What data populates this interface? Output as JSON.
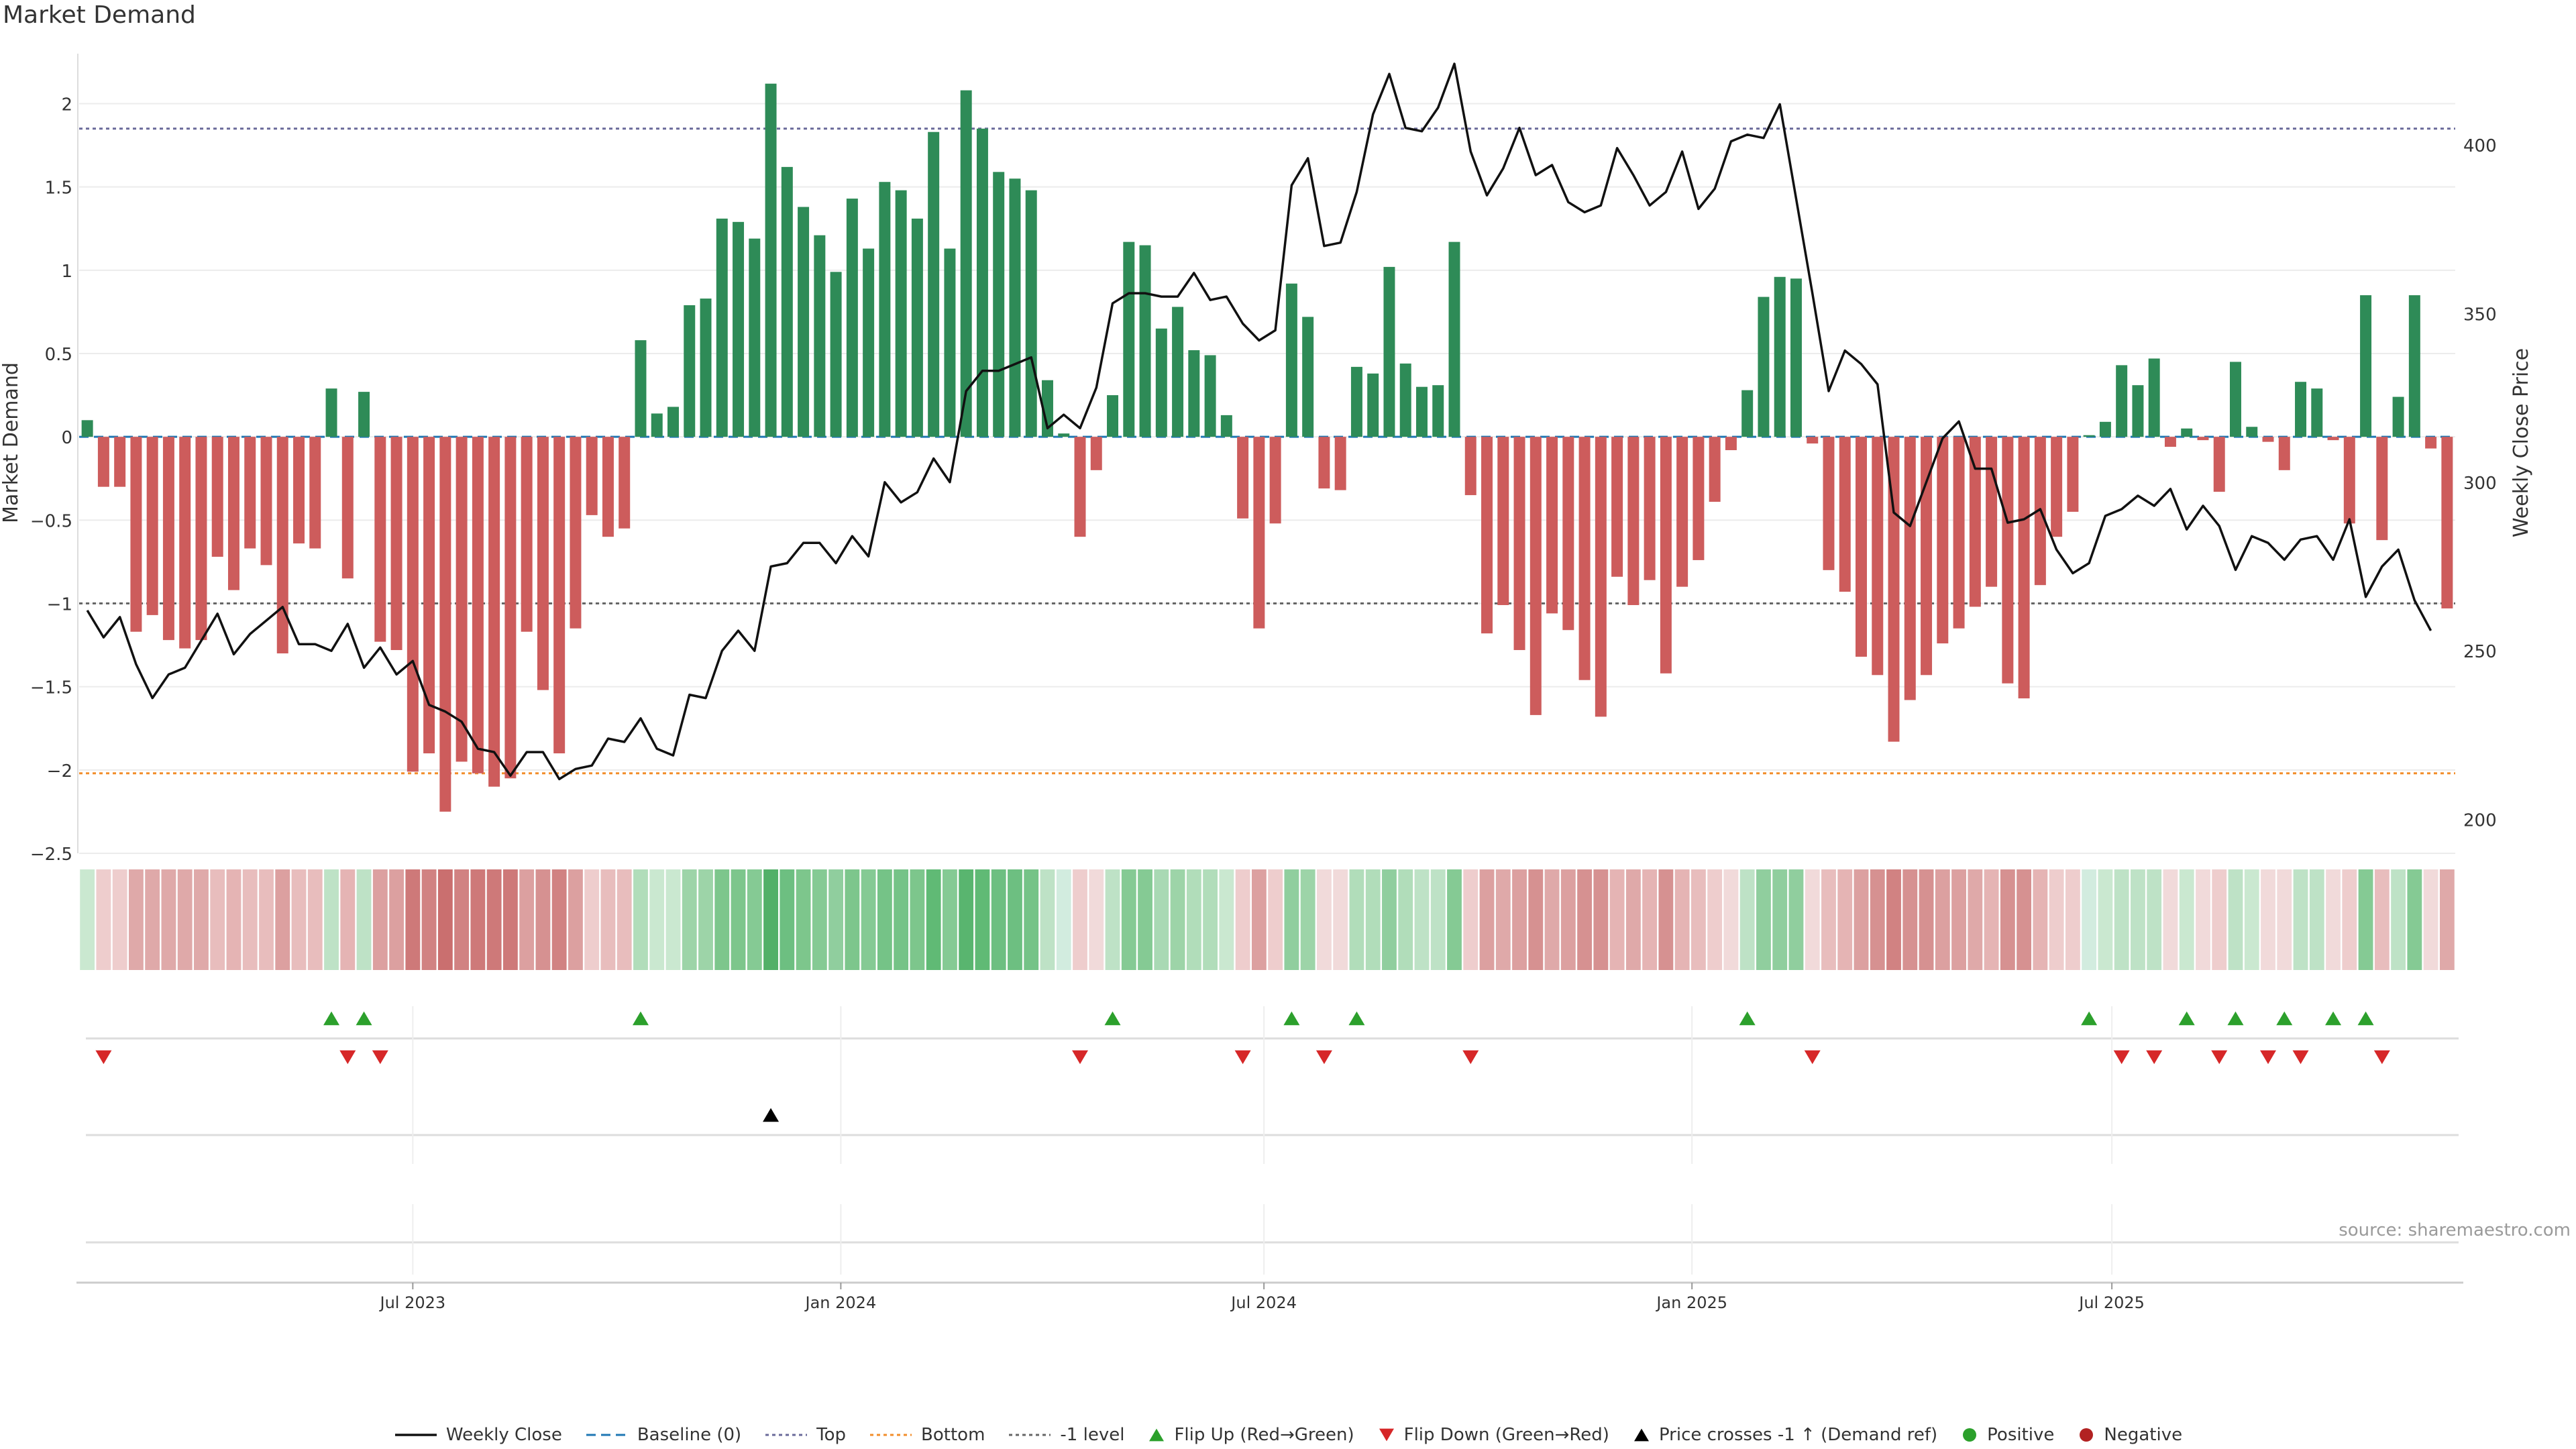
{
  "chart_data": {
    "type": "bar",
    "title": "Market Demand",
    "ylabel_left": "Market Demand",
    "ylabel_right": "Weekly Close Price",
    "ylim_left": [
      -2.5,
      2.3
    ],
    "ylim_right": [
      190,
      427
    ],
    "left_ticks": [
      "2",
      "1.5",
      "1",
      "0.5",
      "0",
      "−0.5",
      "−1",
      "−1.5",
      "−2",
      "−2.5"
    ],
    "left_tick_values": [
      2,
      1.5,
      1,
      0.5,
      0,
      -0.5,
      -1,
      -1.5,
      -2,
      -2.5
    ],
    "right_ticks": [
      "400",
      "350",
      "300",
      "250",
      "200"
    ],
    "right_tick_values": [
      400,
      350,
      300,
      250,
      200
    ],
    "top_level": 1.85,
    "bottom_level": -2.02,
    "minus_one_level": -1,
    "x_ticks": [
      "Jul 2023",
      "Jan 2024",
      "Jul 2024",
      "Jan 2025",
      "Jul 2025"
    ],
    "x_tick_weeks": [
      20,
      46.3,
      72.3,
      98.6,
      124.4
    ],
    "demand": [
      0.1,
      -0.3,
      -0.3,
      -1.17,
      -1.07,
      -1.22,
      -1.27,
      -1.22,
      -0.72,
      -0.92,
      -0.67,
      -0.77,
      -1.3,
      -0.64,
      -0.67,
      0.29,
      -0.85,
      0.27,
      -1.23,
      -1.28,
      -2.01,
      -1.9,
      -2.25,
      -1.95,
      -2.02,
      -2.1,
      -2.05,
      -1.17,
      -1.52,
      -1.9,
      -1.15,
      -0.47,
      -0.6,
      -0.55,
      0.58,
      0.14,
      0.18,
      0.79,
      0.83,
      1.31,
      1.29,
      1.19,
      2.12,
      1.62,
      1.38,
      1.21,
      0.99,
      1.43,
      1.13,
      1.53,
      1.48,
      1.31,
      1.83,
      1.13,
      2.08,
      1.85,
      1.59,
      1.55,
      1.48,
      0.34,
      0.02,
      -0.6,
      -0.2,
      0.25,
      1.17,
      1.15,
      0.65,
      0.78,
      0.52,
      0.49,
      0.13,
      -0.49,
      -1.15,
      -0.52,
      0.92,
      0.72,
      -0.31,
      -0.32,
      0.42,
      0.38,
      1.02,
      0.44,
      0.3,
      0.31,
      1.17,
      -0.35,
      -1.18,
      -1.01,
      -1.28,
      -1.67,
      -1.06,
      -1.16,
      -1.46,
      -1.68,
      -0.84,
      -1.01,
      -0.86,
      -1.42,
      -0.9,
      -0.74,
      -0.39,
      -0.08,
      0.28,
      0.84,
      0.96,
      0.95,
      -0.04,
      -0.8,
      -0.93,
      -1.32,
      -1.43,
      -1.83,
      -1.58,
      -1.43,
      -1.24,
      -1.15,
      -1.02,
      -0.9,
      -1.48,
      -1.57,
      -0.89,
      -0.6,
      -0.45,
      0.01,
      0.09,
      0.43,
      0.31,
      0.47,
      -0.06,
      0.05,
      -0.02,
      -0.33,
      0.45,
      0.06,
      -0.03,
      -0.2,
      0.33,
      0.29,
      -0.02,
      -0.52,
      0.85,
      -0.62,
      0.24,
      0.85,
      -0.07,
      -1.03
    ],
    "weekly_close": [
      262,
      254,
      260,
      246,
      236,
      243,
      245,
      253,
      261,
      249,
      255,
      259,
      263,
      252,
      252,
      250,
      258,
      245,
      251,
      243,
      247,
      234,
      232,
      229,
      221,
      220,
      213,
      220,
      220,
      212,
      215,
      216,
      224,
      223,
      230,
      221,
      219,
      237,
      236,
      250,
      256,
      250,
      275,
      276,
      282,
      282,
      276,
      284,
      278,
      300,
      294,
      297,
      307,
      300,
      327,
      333,
      333,
      335,
      337,
      316,
      320,
      316,
      328,
      353,
      356,
      356,
      355,
      355,
      362,
      354,
      355,
      347,
      342,
      345,
      388,
      396,
      370,
      371,
      386,
      409,
      421,
      405,
      404,
      411,
      424,
      398,
      385,
      393,
      405,
      391,
      394,
      383,
      380,
      382,
      399,
      391,
      382,
      386,
      398,
      381,
      387,
      401,
      403,
      402,
      412,
      384,
      356,
      327,
      339,
      335,
      329,
      291,
      287,
      300,
      313,
      318,
      304,
      304,
      288,
      289,
      292,
      280,
      273,
      276,
      290,
      292,
      296,
      293,
      298,
      286,
      293,
      287,
      274,
      284,
      282,
      277,
      283,
      284,
      277,
      289,
      266,
      275,
      280,
      265,
      256
    ],
    "heat_cells": [
      {
        "c": "#c4e5cb",
        "a": 0.9
      },
      {
        "c": "#ecc8c8",
        "a": 0.9
      },
      {
        "c": "#ecc8c8",
        "a": 0.9
      },
      {
        "c": "#dca0a0",
        "a": 0.9
      },
      {
        "c": "#dca0a0",
        "a": 0.9
      },
      {
        "c": "#dca0a0",
        "a": 0.9
      },
      {
        "c": "#dca0a0",
        "a": 0.9
      },
      {
        "c": "#dca0a0",
        "a": 0.9
      },
      {
        "c": "#e6b6b6",
        "a": 0.9
      },
      {
        "c": "#e2acac",
        "a": 0.9
      },
      {
        "c": "#e6b6b6",
        "a": 0.9
      },
      {
        "c": "#e6b6b6",
        "a": 0.9
      },
      {
        "c": "#d89696",
        "a": 0.9
      },
      {
        "c": "#e6b6b6",
        "a": 0.9
      },
      {
        "c": "#e6b6b6",
        "a": 0.9
      },
      {
        "c": "#b7dfc0",
        "a": 0.9
      },
      {
        "c": "#e2acac",
        "a": 0.9
      },
      {
        "c": "#b7dfc0",
        "a": 0.9
      },
      {
        "c": "#d89696",
        "a": 0.9
      },
      {
        "c": "#d89696",
        "a": 0.9
      },
      {
        "c": "#c96a6a",
        "a": 0.9
      },
      {
        "c": "#cc7474",
        "a": 0.9
      },
      {
        "c": "#c45f5f",
        "a": 0.9
      },
      {
        "c": "#cc7474",
        "a": 0.9
      },
      {
        "c": "#c96a6a",
        "a": 0.9
      },
      {
        "c": "#c96a6a",
        "a": 0.9
      },
      {
        "c": "#c96a6a",
        "a": 0.9
      },
      {
        "c": "#d89696",
        "a": 0.9
      },
      {
        "c": "#d28585",
        "a": 0.9
      },
      {
        "c": "#cc7474",
        "a": 0.9
      },
      {
        "c": "#d89696",
        "a": 0.9
      },
      {
        "c": "#ecc8c8",
        "a": 0.9
      },
      {
        "c": "#e6b6b6",
        "a": 0.9
      },
      {
        "c": "#e6b6b6",
        "a": 0.9
      },
      {
        "c": "#a8d9b3",
        "a": 0.9
      },
      {
        "c": "#c4e5cb",
        "a": 0.9
      },
      {
        "c": "#c4e5cb",
        "a": 0.9
      },
      {
        "c": "#92cf9f",
        "a": 0.9
      },
      {
        "c": "#92cf9f",
        "a": 0.9
      },
      {
        "c": "#6fc080",
        "a": 0.9
      },
      {
        "c": "#6fc080",
        "a": 0.9
      },
      {
        "c": "#78c488",
        "a": 0.9
      },
      {
        "c": "#3fa758",
        "a": 0.9
      },
      {
        "c": "#5db873",
        "a": 0.9
      },
      {
        "c": "#6fc080",
        "a": 0.9
      },
      {
        "c": "#78c488",
        "a": 0.9
      },
      {
        "c": "#84c994",
        "a": 0.9
      },
      {
        "c": "#6fc080",
        "a": 0.9
      },
      {
        "c": "#78c488",
        "a": 0.9
      },
      {
        "c": "#66bc7a",
        "a": 0.9
      },
      {
        "c": "#66bc7a",
        "a": 0.9
      },
      {
        "c": "#6fc080",
        "a": 0.9
      },
      {
        "c": "#4fb266",
        "a": 0.9
      },
      {
        "c": "#78c488",
        "a": 0.9
      },
      {
        "c": "#47ad5f",
        "a": 0.9
      },
      {
        "c": "#4fb266",
        "a": 0.9
      },
      {
        "c": "#5db873",
        "a": 0.9
      },
      {
        "c": "#5db873",
        "a": 0.9
      },
      {
        "c": "#66bc7a",
        "a": 0.9
      },
      {
        "c": "#b7dfc0",
        "a": 0.9
      },
      {
        "c": "#cdeadc",
        "a": 0.9
      },
      {
        "c": "#ecc8c8",
        "a": 0.9
      },
      {
        "c": "#f0d6d6",
        "a": 0.9
      },
      {
        "c": "#b7dfc0",
        "a": 0.9
      },
      {
        "c": "#78c488",
        "a": 0.9
      },
      {
        "c": "#78c488",
        "a": 0.9
      },
      {
        "c": "#a0d5ac",
        "a": 0.9
      },
      {
        "c": "#92cf9f",
        "a": 0.9
      },
      {
        "c": "#a8d9b3",
        "a": 0.9
      },
      {
        "c": "#a8d9b3",
        "a": 0.9
      },
      {
        "c": "#c4e5cb",
        "a": 0.9
      },
      {
        "c": "#ecc8c8",
        "a": 0.9
      },
      {
        "c": "#d89696",
        "a": 0.9
      },
      {
        "c": "#ecc8c8",
        "a": 0.9
      },
      {
        "c": "#84c994",
        "a": 0.9
      },
      {
        "c": "#92cf9f",
        "a": 0.9
      },
      {
        "c": "#f0d6d6",
        "a": 0.9
      },
      {
        "c": "#f0d6d6",
        "a": 0.9
      },
      {
        "c": "#a8d9b3",
        "a": 0.9
      },
      {
        "c": "#a8d9b3",
        "a": 0.9
      },
      {
        "c": "#84c994",
        "a": 0.9
      },
      {
        "c": "#a8d9b3",
        "a": 0.9
      },
      {
        "c": "#b7dfc0",
        "a": 0.9
      },
      {
        "c": "#b7dfc0",
        "a": 0.9
      },
      {
        "c": "#78c488",
        "a": 0.9
      },
      {
        "c": "#ecc8c8",
        "a": 0.9
      },
      {
        "c": "#d89696",
        "a": 0.9
      },
      {
        "c": "#dca0a0",
        "a": 0.9
      },
      {
        "c": "#d89696",
        "a": 0.9
      },
      {
        "c": "#d28585",
        "a": 0.9
      },
      {
        "c": "#dca0a0",
        "a": 0.9
      },
      {
        "c": "#d89696",
        "a": 0.9
      },
      {
        "c": "#d28585",
        "a": 0.9
      },
      {
        "c": "#d28585",
        "a": 0.9
      },
      {
        "c": "#e2acac",
        "a": 0.9
      },
      {
        "c": "#dca0a0",
        "a": 0.9
      },
      {
        "c": "#e2acac",
        "a": 0.9
      },
      {
        "c": "#d28585",
        "a": 0.9
      },
      {
        "c": "#e2acac",
        "a": 0.9
      },
      {
        "c": "#e6b6b6",
        "a": 0.9
      },
      {
        "c": "#ecc8c8",
        "a": 0.9
      },
      {
        "c": "#f0d6d6",
        "a": 0.9
      },
      {
        "c": "#b7dfc0",
        "a": 0.9
      },
      {
        "c": "#84c994",
        "a": 0.9
      },
      {
        "c": "#84c994",
        "a": 0.9
      },
      {
        "c": "#84c994",
        "a": 0.9
      },
      {
        "c": "#f0d6d6",
        "a": 0.9
      },
      {
        "c": "#e6b6b6",
        "a": 0.9
      },
      {
        "c": "#e2acac",
        "a": 0.9
      },
      {
        "c": "#d89696",
        "a": 0.9
      },
      {
        "c": "#d28585",
        "a": 0.9
      },
      {
        "c": "#cc7474",
        "a": 0.9
      },
      {
        "c": "#d28585",
        "a": 0.9
      },
      {
        "c": "#d28585",
        "a": 0.9
      },
      {
        "c": "#d89696",
        "a": 0.9
      },
      {
        "c": "#d89696",
        "a": 0.9
      },
      {
        "c": "#dca0a0",
        "a": 0.9
      },
      {
        "c": "#e2acac",
        "a": 0.9
      },
      {
        "c": "#d28585",
        "a": 0.9
      },
      {
        "c": "#d28585",
        "a": 0.9
      },
      {
        "c": "#e2acac",
        "a": 0.9
      },
      {
        "c": "#ecc8c8",
        "a": 0.9
      },
      {
        "c": "#ecc8c8",
        "a": 0.9
      },
      {
        "c": "#cdeadc",
        "a": 0.9
      },
      {
        "c": "#c4e5cb",
        "a": 0.9
      },
      {
        "c": "#b7dfc0",
        "a": 0.9
      },
      {
        "c": "#b7dfc0",
        "a": 0.9
      },
      {
        "c": "#b7dfc0",
        "a": 0.9
      },
      {
        "c": "#f0d6d6",
        "a": 0.9
      },
      {
        "c": "#c4e5cb",
        "a": 0.9
      },
      {
        "c": "#f0d6d6",
        "a": 0.9
      },
      {
        "c": "#ecc8c8",
        "a": 0.9
      },
      {
        "c": "#b7dfc0",
        "a": 0.9
      },
      {
        "c": "#c4e5cb",
        "a": 0.9
      },
      {
        "c": "#f0d6d6",
        "a": 0.9
      },
      {
        "c": "#f0d6d6",
        "a": 0.9
      },
      {
        "c": "#b7dfc0",
        "a": 0.9
      },
      {
        "c": "#b7dfc0",
        "a": 0.9
      },
      {
        "c": "#f0d6d6",
        "a": 0.9
      },
      {
        "c": "#ecc8c8",
        "a": 0.9
      },
      {
        "c": "#78c488",
        "a": 0.9
      },
      {
        "c": "#e6b6b6",
        "a": 0.9
      },
      {
        "c": "#b7dfc0",
        "a": 0.9
      },
      {
        "c": "#78c488",
        "a": 0.9
      },
      {
        "c": "#f0d6d6",
        "a": 0.9
      },
      {
        "c": "#dca0a0",
        "a": 0.9
      }
    ],
    "flip_up_weeks": [
      15,
      17,
      34,
      63,
      74,
      78,
      102,
      123,
      129,
      132,
      135,
      138,
      140
    ],
    "flip_down_weeks": [
      1,
      16,
      18,
      61,
      71,
      76,
      85,
      106,
      125,
      127,
      131,
      134,
      136,
      141
    ],
    "price_cross_weeks": [
      42
    ],
    "series_colors": {
      "positive_bar": "#2e8b57",
      "negative_bar": "#cd5c5c",
      "weekly_close": "#111111",
      "baseline": "#1f77b4",
      "top": "#6a6a9a",
      "bottom": "#f28e2b",
      "minus_one": "#666666",
      "flip_up": "#2ca02c",
      "flip_down": "#d62728",
      "price_cross": "#000000",
      "positive_dot": "#2ca02c",
      "negative_dot": "#b22222"
    }
  },
  "source_text": "source: sharemaestro.com",
  "legend": [
    {
      "label": "Weekly Close",
      "kind": "line",
      "color": "#111111"
    },
    {
      "label": "Baseline (0)",
      "kind": "dash",
      "color": "#1f77b4"
    },
    {
      "label": "Top",
      "kind": "dot",
      "color": "#6a6a9a"
    },
    {
      "label": "Bottom",
      "kind": "dot",
      "color": "#f28e2b"
    },
    {
      "label": "-1 level",
      "kind": "dot",
      "color": "#666666"
    },
    {
      "label": "Flip Up (Red→Green)",
      "kind": "tri-up",
      "color": "#2ca02c"
    },
    {
      "label": "Flip Down (Green→Red)",
      "kind": "tri-down",
      "color": "#d62728"
    },
    {
      "label": "Price crosses -1 ↑ (Demand ref)",
      "kind": "tri-up",
      "color": "#000000"
    },
    {
      "label": "Positive",
      "kind": "circle",
      "color": "#2ca02c"
    },
    {
      "label": "Negative",
      "kind": "circle",
      "color": "#b22222"
    }
  ]
}
